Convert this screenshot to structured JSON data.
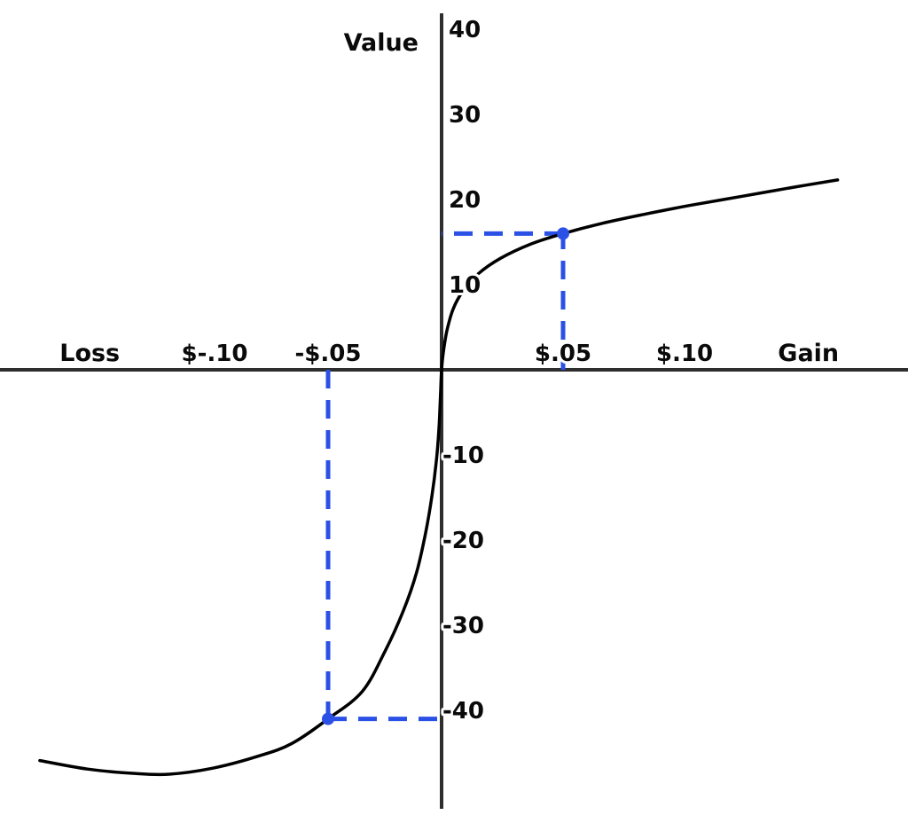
{
  "chart_data": {
    "type": "line",
    "ylabel": "Value",
    "x_axis": {
      "left_label": {
        "label": "Loss",
        "x": -0.155
      },
      "right_label": {
        "label": "Gain",
        "x": 0.151
      },
      "ticks": [
        {
          "label": "$-.10",
          "x": -0.1
        },
        {
          "label": "-$.05",
          "x": -0.05
        },
        {
          "label": "$.05",
          "x": 0.05
        },
        {
          "label": "$.10",
          "x": 0.1
        }
      ]
    },
    "y_axis": {
      "ticks": [
        40,
        30,
        20,
        10,
        -10,
        -20,
        -30,
        -40
      ]
    },
    "xlim": [
      -0.19,
      0.2
    ],
    "ylim": [
      -50,
      42
    ],
    "grid": false,
    "series": [
      {
        "name": "value-function-curve",
        "color": "#000000",
        "points": [
          [
            -0.177,
            -45.9
          ],
          [
            -0.156,
            -46.9
          ],
          [
            -0.136,
            -47.4
          ],
          [
            -0.12,
            -47.5
          ],
          [
            -0.101,
            -46.8
          ],
          [
            -0.081,
            -45.4
          ],
          [
            -0.066,
            -43.9
          ],
          [
            -0.05,
            -41.0
          ],
          [
            -0.035,
            -37.8
          ],
          [
            -0.025,
            -33.1
          ],
          [
            -0.017,
            -28.4
          ],
          [
            -0.011,
            -23.8
          ],
          [
            -0.007,
            -19.1
          ],
          [
            -0.0043,
            -14.9
          ],
          [
            -0.0023,
            -10.7
          ],
          [
            -0.0011,
            -6.6
          ],
          [
            -0.0004,
            -2.4
          ],
          [
            0,
            0
          ],
          [
            0.0007,
            2.0
          ],
          [
            0.0022,
            4.6
          ],
          [
            0.0047,
            7.1
          ],
          [
            0.0087,
            9.2
          ],
          [
            0.0152,
            11.3
          ],
          [
            0.0243,
            13.1
          ],
          [
            0.037,
            14.8
          ],
          [
            0.05,
            16.0
          ],
          [
            0.066,
            17.2
          ],
          [
            0.084,
            18.3
          ],
          [
            0.102,
            19.3
          ],
          [
            0.124,
            20.4
          ],
          [
            0.146,
            21.5
          ],
          [
            0.163,
            22.3
          ]
        ]
      }
    ],
    "annotations": {
      "color": "#2b50e6",
      "points": [
        {
          "x": 0.05,
          "value": 16
        },
        {
          "x": -0.05,
          "value": -41
        }
      ]
    }
  }
}
